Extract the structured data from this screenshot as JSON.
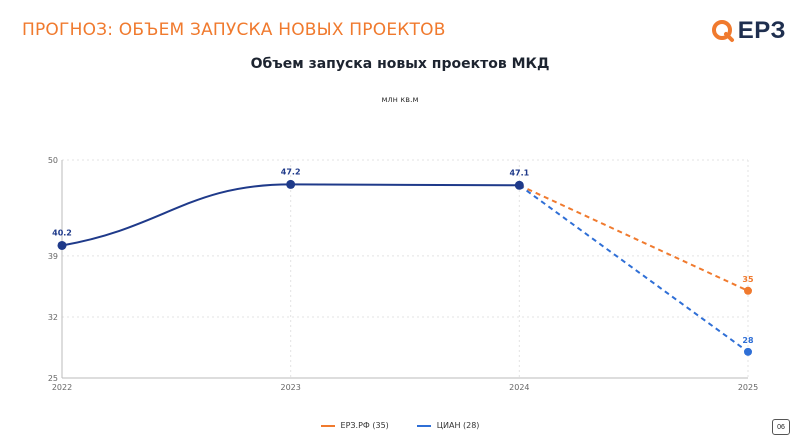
{
  "header": {
    "slide_title": "ПРОГНОЗ: ОБЪЕМ ЗАПУСКА НОВЫХ ПРОЕКТОВ",
    "logo_text": "ЕРЗ",
    "logo_color": "#f07a2e"
  },
  "footer": {
    "page_number": "06"
  },
  "chart_data": {
    "type": "line",
    "title": "Объем запуска новых проектов МКД",
    "units_label": "млн кв.м",
    "xlabel": "",
    "ylabel": "",
    "x": [
      "2022",
      "2023",
      "2024",
      "2025"
    ],
    "ylim": [
      25,
      50
    ],
    "yticks": [
      25,
      32,
      39,
      50
    ],
    "grid": true,
    "legend_position": "bottom-center",
    "history": {
      "x": [
        "2022",
        "2023",
        "2024"
      ],
      "values": [
        40.2,
        47.2,
        47.1
      ],
      "labels": [
        "40.2",
        "47.2",
        "47.1"
      ],
      "color": "#1f3a8a"
    },
    "series": [
      {
        "name": "ЕРЗ.РФ (35)",
        "x": [
          "2024",
          "2025"
        ],
        "values": [
          47.1,
          35
        ],
        "end_label": "35",
        "color": "#f07a2e",
        "style": "dashed"
      },
      {
        "name": "ЦИАН (28)",
        "x": [
          "2024",
          "2025"
        ],
        "values": [
          47.1,
          28
        ],
        "end_label": "28",
        "color": "#2f6fd6",
        "style": "dashed"
      }
    ]
  }
}
